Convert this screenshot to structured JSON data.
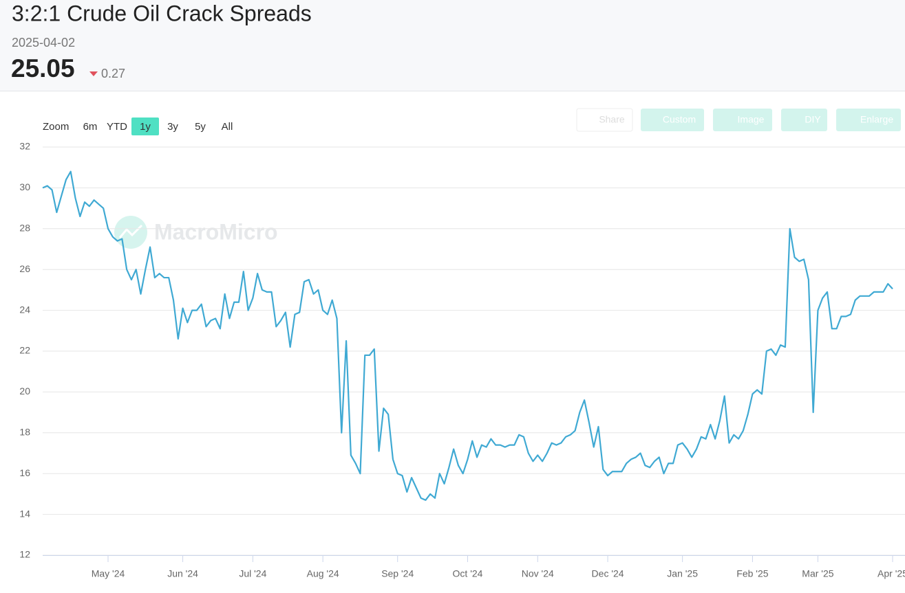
{
  "header": {
    "title": "3:2:1 Crude Oil Crack Spreads",
    "date": "2025-04-02",
    "value": "25.05",
    "change": "0.27"
  },
  "toolbar": {
    "zoom": "Zoom",
    "ranges": [
      "6m",
      "YTD",
      "1y",
      "3y",
      "5y",
      "All"
    ]
  },
  "actions": [
    "Share",
    "Custom",
    "Image",
    "DIY",
    "Enlarge"
  ],
  "watermark": "MacroMicro",
  "chart_data": {
    "type": "line",
    "color": "#3fa9d3",
    "grid": true,
    "ylim": [
      12,
      32
    ],
    "yticks": [
      12,
      14,
      16,
      18,
      20,
      22,
      24,
      26,
      28,
      30,
      32
    ],
    "categories": [
      null,
      null,
      null,
      null,
      null,
      null,
      null,
      null,
      null,
      null,
      null,
      null,
      null,
      null,
      "May '24",
      null,
      null,
      null,
      null,
      null,
      null,
      null,
      null,
      null,
      null,
      null,
      null,
      null,
      null,
      null,
      "Jun '24",
      null,
      null,
      null,
      null,
      null,
      null,
      null,
      null,
      null,
      null,
      null,
      null,
      null,
      null,
      "Jul '24",
      null,
      null,
      null,
      null,
      null,
      null,
      null,
      null,
      null,
      null,
      null,
      null,
      null,
      null,
      "Aug '24",
      null,
      null,
      null,
      null,
      null,
      null,
      null,
      null,
      null,
      null,
      null,
      null,
      null,
      null,
      null,
      "Sep '24",
      null,
      null,
      null,
      null,
      null,
      null,
      null,
      null,
      null,
      null,
      null,
      null,
      null,
      null,
      "Oct '24",
      null,
      null,
      null,
      null,
      null,
      null,
      null,
      null,
      null,
      null,
      null,
      null,
      null,
      null,
      "Nov '24",
      null,
      null,
      null,
      null,
      null,
      null,
      null,
      null,
      null,
      null,
      null,
      null,
      null,
      null,
      "Dec '24",
      null,
      null,
      null,
      null,
      null,
      null,
      null,
      null,
      null,
      null,
      null,
      null,
      null,
      null,
      null,
      "Jan '25",
      null,
      null,
      null,
      null,
      null,
      null,
      null,
      null,
      null,
      null,
      null,
      null,
      null,
      null,
      "Feb '25",
      null,
      null,
      null,
      null,
      null,
      null,
      null,
      null,
      null,
      null,
      null,
      null,
      null,
      "Mar '25",
      null,
      null,
      null,
      null,
      null,
      null,
      null,
      null,
      null,
      null,
      null,
      null,
      null,
      null,
      null,
      "Apr '25"
    ],
    "values": [
      30.0,
      30.1,
      29.9,
      28.8,
      29.6,
      30.4,
      30.8,
      29.5,
      28.6,
      29.3,
      29.1,
      29.4,
      29.2,
      29.0,
      28.0,
      27.6,
      27.4,
      27.5,
      26.0,
      25.5,
      26.0,
      24.8,
      26.0,
      27.1,
      25.6,
      25.8,
      25.6,
      25.6,
      24.5,
      22.6,
      24.1,
      23.4,
      24.0,
      24.0,
      24.3,
      23.2,
      23.5,
      23.6,
      23.1,
      24.8,
      23.6,
      24.4,
      24.4,
      25.9,
      24.0,
      24.6,
      25.8,
      25.0,
      24.9,
      24.9,
      23.2,
      23.5,
      23.9,
      22.2,
      23.8,
      23.9,
      25.4,
      25.5,
      24.8,
      25.0,
      24.0,
      23.8,
      24.5,
      23.6,
      18.0,
      22.5,
      16.9,
      16.5,
      16.0,
      21.8,
      21.8,
      22.1,
      17.1,
      19.2,
      18.9,
      16.7,
      16.0,
      15.9,
      15.1,
      15.8,
      15.3,
      14.8,
      14.7,
      15.0,
      14.8,
      16.0,
      15.5,
      16.3,
      17.2,
      16.4,
      16.0,
      16.7,
      17.6,
      16.8,
      17.4,
      17.3,
      17.7,
      17.4,
      17.4,
      17.3,
      17.4,
      17.4,
      17.9,
      17.8,
      17.0,
      16.6,
      16.9,
      16.6,
      17.0,
      17.5,
      17.4,
      17.5,
      17.8,
      17.9,
      18.1,
      19.0,
      19.6,
      18.5,
      17.3,
      18.3,
      16.2,
      15.9,
      16.1,
      16.1,
      16.1,
      16.5,
      16.7,
      16.8,
      17.0,
      16.4,
      16.3,
      16.6,
      16.8,
      16.0,
      16.5,
      16.5,
      17.4,
      17.5,
      17.2,
      16.8,
      17.2,
      17.8,
      17.7,
      18.4,
      17.7,
      18.6,
      19.8,
      17.5,
      17.9,
      17.7,
      18.1,
      18.9,
      19.9,
      20.1,
      19.9,
      22.0,
      22.1,
      21.8,
      22.3,
      22.2,
      28.0,
      26.6,
      26.4,
      26.5,
      25.5,
      19.0,
      24.0,
      24.6,
      24.9,
      23.1,
      23.1,
      23.7,
      23.7,
      23.8,
      24.5,
      24.7,
      24.7,
      24.7,
      24.9,
      24.9,
      24.9,
      25.3,
      25.05
    ]
  }
}
